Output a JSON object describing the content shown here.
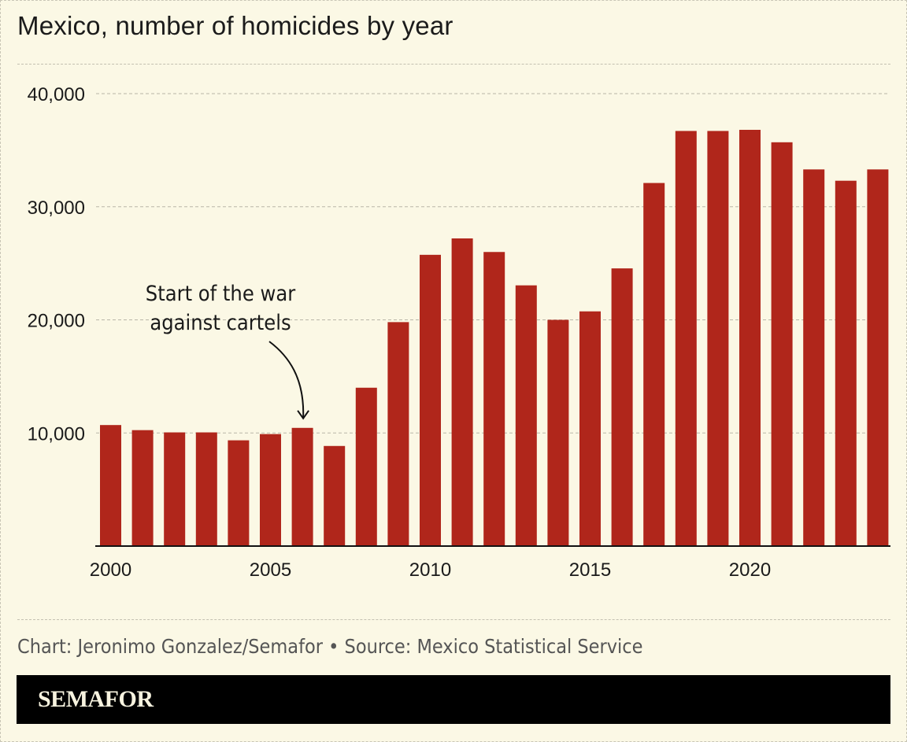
{
  "title": "Mexico, number of homicides by year",
  "credit": "Chart: Jeronimo Gonzalez/Semafor • Source: Mexico Statistical Service",
  "brand": "SEMAFOR",
  "colors": {
    "bar": "#b0261b",
    "background": "#fbf8e5",
    "grid": "#b9b6a8",
    "text": "#1a1a1a"
  },
  "chart_data": {
    "type": "bar",
    "title": "Mexico, number of homicides by year",
    "xlabel": "",
    "ylabel": "",
    "ylim": [
      0,
      40000
    ],
    "yticks": [
      "10,000",
      "20,000",
      "30,000",
      "40,000"
    ],
    "ytick_values": [
      10000,
      20000,
      30000,
      40000
    ],
    "xtick_labels": [
      "2000",
      "2005",
      "2010",
      "2015",
      "2020"
    ],
    "categories": [
      2000,
      2001,
      2002,
      2003,
      2004,
      2005,
      2006,
      2007,
      2008,
      2009,
      2010,
      2011,
      2012,
      2013,
      2014,
      2015,
      2016,
      2017,
      2018,
      2019,
      2020,
      2021,
      2022,
      2023,
      2024
    ],
    "values": [
      10700,
      10250,
      10050,
      10050,
      9350,
      9900,
      10450,
      8850,
      14000,
      19800,
      25750,
      27200,
      26000,
      23050,
      20000,
      20750,
      24550,
      32100,
      36700,
      36700,
      36800,
      35700,
      33300,
      32300,
      33300
    ],
    "grid": true,
    "annotations": [
      {
        "text_lines": [
          "Start of the war",
          "against cartels"
        ],
        "target_year": 2006
      }
    ]
  }
}
